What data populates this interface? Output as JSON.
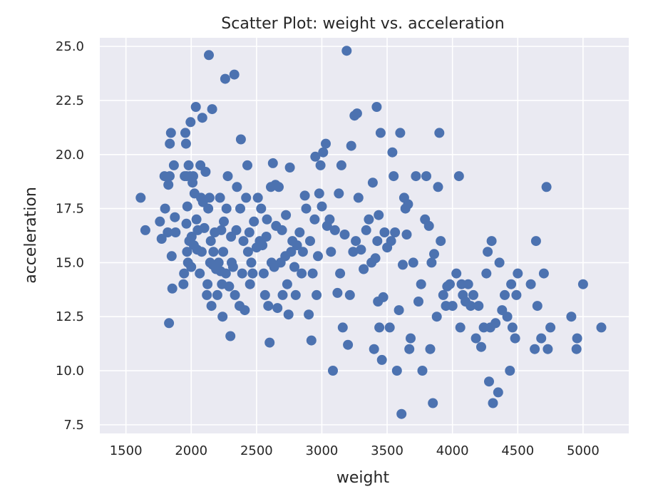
{
  "chart_data": {
    "type": "scatter",
    "title": "Scatter Plot: weight vs. acceleration",
    "xlabel": "weight",
    "ylabel": "acceleration",
    "xlim": [
      1300,
      5350
    ],
    "ylim": [
      7.1,
      25.4
    ],
    "xticks": [
      "1500",
      "2000",
      "2500",
      "3000",
      "3500",
      "4000",
      "4500",
      "5000"
    ],
    "yticks": [
      "7.5",
      "10.0",
      "12.5",
      "15.0",
      "17.5",
      "20.0",
      "22.5",
      "25.0"
    ],
    "grid": true,
    "marker_color": "#4c72b0",
    "background_color": "#eaeaf2",
    "points": [
      [
        1613,
        18.0
      ],
      [
        1649,
        16.5
      ],
      [
        1760,
        16.9
      ],
      [
        1773,
        16.1
      ],
      [
        1795,
        19.0
      ],
      [
        1800,
        17.5
      ],
      [
        1820,
        16.4
      ],
      [
        1825,
        18.6
      ],
      [
        1830,
        12.2
      ],
      [
        1835,
        19.0
      ],
      [
        1836,
        20.5
      ],
      [
        1845,
        21.0
      ],
      [
        1850,
        15.3
      ],
      [
        1855,
        13.8
      ],
      [
        1867,
        19.5
      ],
      [
        1875,
        17.1
      ],
      [
        1880,
        16.4
      ],
      [
        1940,
        14.0
      ],
      [
        1945,
        14.5
      ],
      [
        1950,
        19.0
      ],
      [
        1955,
        21.0
      ],
      [
        1960,
        20.5
      ],
      [
        1963,
        16.8
      ],
      [
        1965,
        19.0
      ],
      [
        1968,
        15.5
      ],
      [
        1970,
        17.6
      ],
      [
        1975,
        15.0
      ],
      [
        1980,
        19.5
      ],
      [
        1985,
        16.0
      ],
      [
        1990,
        19.0
      ],
      [
        1995,
        21.5
      ],
      [
        2000,
        14.8
      ],
      [
        2003,
        16.2
      ],
      [
        2010,
        18.7
      ],
      [
        2015,
        19.0
      ],
      [
        2020,
        15.8
      ],
      [
        2025,
        18.2
      ],
      [
        2035,
        22.2
      ],
      [
        2040,
        17.0
      ],
      [
        2045,
        15.6
      ],
      [
        2050,
        16.5
      ],
      [
        2065,
        14.5
      ],
      [
        2070,
        19.5
      ],
      [
        2075,
        18.0
      ],
      [
        2080,
        15.5
      ],
      [
        2085,
        21.7
      ],
      [
        2090,
        17.8
      ],
      [
        2100,
        16.6
      ],
      [
        2110,
        19.2
      ],
      [
        2120,
        13.5
      ],
      [
        2125,
        14.0
      ],
      [
        2130,
        17.5
      ],
      [
        2135,
        24.6
      ],
      [
        2140,
        18.0
      ],
      [
        2145,
        15.0
      ],
      [
        2150,
        16.0
      ],
      [
        2155,
        13.0
      ],
      [
        2160,
        22.1
      ],
      [
        2164,
        14.9
      ],
      [
        2170,
        15.5
      ],
      [
        2180,
        16.4
      ],
      [
        2190,
        14.7
      ],
      [
        2200,
        13.5
      ],
      [
        2210,
        15.0
      ],
      [
        2220,
        18.0
      ],
      [
        2225,
        14.6
      ],
      [
        2230,
        16.5
      ],
      [
        2235,
        14.0
      ],
      [
        2240,
        12.5
      ],
      [
        2245,
        15.5
      ],
      [
        2250,
        16.9
      ],
      [
        2260,
        23.5
      ],
      [
        2265,
        14.5
      ],
      [
        2270,
        17.5
      ],
      [
        2280,
        19.0
      ],
      [
        2290,
        13.9
      ],
      [
        2300,
        11.6
      ],
      [
        2305,
        16.2
      ],
      [
        2310,
        15.0
      ],
      [
        2320,
        14.8
      ],
      [
        2330,
        23.7
      ],
      [
        2335,
        13.5
      ],
      [
        2345,
        16.5
      ],
      [
        2350,
        18.5
      ],
      [
        2370,
        13.0
      ],
      [
        2375,
        17.5
      ],
      [
        2380,
        20.7
      ],
      [
        2390,
        14.5
      ],
      [
        2400,
        16.0
      ],
      [
        2410,
        12.8
      ],
      [
        2420,
        18.0
      ],
      [
        2430,
        19.5
      ],
      [
        2435,
        15.5
      ],
      [
        2445,
        16.4
      ],
      [
        2450,
        14.0
      ],
      [
        2460,
        15.0
      ],
      [
        2470,
        14.5
      ],
      [
        2480,
        16.9
      ],
      [
        2500,
        15.7
      ],
      [
        2510,
        18.0
      ],
      [
        2525,
        16.0
      ],
      [
        2535,
        17.5
      ],
      [
        2545,
        15.8
      ],
      [
        2555,
        14.5
      ],
      [
        2565,
        13.5
      ],
      [
        2575,
        16.2
      ],
      [
        2580,
        17.0
      ],
      [
        2590,
        13.0
      ],
      [
        2600,
        11.3
      ],
      [
        2610,
        18.5
      ],
      [
        2615,
        15.0
      ],
      [
        2625,
        19.6
      ],
      [
        2635,
        14.8
      ],
      [
        2645,
        18.6
      ],
      [
        2650,
        16.7
      ],
      [
        2660,
        12.9
      ],
      [
        2670,
        18.5
      ],
      [
        2685,
        15.0
      ],
      [
        2695,
        16.5
      ],
      [
        2700,
        13.5
      ],
      [
        2720,
        15.3
      ],
      [
        2725,
        17.2
      ],
      [
        2735,
        14.0
      ],
      [
        2745,
        12.6
      ],
      [
        2755,
        19.4
      ],
      [
        2765,
        15.5
      ],
      [
        2775,
        16.0
      ],
      [
        2790,
        14.8
      ],
      [
        2800,
        13.5
      ],
      [
        2810,
        15.8
      ],
      [
        2830,
        16.4
      ],
      [
        2845,
        14.5
      ],
      [
        2855,
        15.5
      ],
      [
        2870,
        18.1
      ],
      [
        2880,
        17.5
      ],
      [
        2900,
        12.6
      ],
      [
        2910,
        16.0
      ],
      [
        2920,
        11.4
      ],
      [
        2930,
        14.5
      ],
      [
        2945,
        17.0
      ],
      [
        2950,
        19.9
      ],
      [
        2960,
        13.5
      ],
      [
        2970,
        15.3
      ],
      [
        2980,
        18.2
      ],
      [
        2990,
        19.5
      ],
      [
        3000,
        17.6
      ],
      [
        3010,
        20.1
      ],
      [
        3030,
        20.5
      ],
      [
        3040,
        16.7
      ],
      [
        3060,
        17.0
      ],
      [
        3070,
        15.5
      ],
      [
        3085,
        10.0
      ],
      [
        3100,
        16.5
      ],
      [
        3120,
        13.6
      ],
      [
        3130,
        18.2
      ],
      [
        3140,
        14.5
      ],
      [
        3150,
        19.5
      ],
      [
        3160,
        12.0
      ],
      [
        3175,
        16.3
      ],
      [
        3190,
        24.8
      ],
      [
        3200,
        11.2
      ],
      [
        3215,
        13.5
      ],
      [
        3225,
        20.4
      ],
      [
        3240,
        15.5
      ],
      [
        3250,
        21.8
      ],
      [
        3260,
        16.0
      ],
      [
        3270,
        21.9
      ],
      [
        3280,
        18.0
      ],
      [
        3300,
        15.6
      ],
      [
        3320,
        14.7
      ],
      [
        3340,
        16.5
      ],
      [
        3360,
        17.0
      ],
      [
        3380,
        15.0
      ],
      [
        3390,
        18.7
      ],
      [
        3400,
        11.0
      ],
      [
        3410,
        15.2
      ],
      [
        3420,
        22.2
      ],
      [
        3425,
        16.0
      ],
      [
        3430,
        13.2
      ],
      [
        3435,
        17.2
      ],
      [
        3440,
        12.0
      ],
      [
        3450,
        21.0
      ],
      [
        3460,
        10.5
      ],
      [
        3470,
        13.4
      ],
      [
        3480,
        16.4
      ],
      [
        3500,
        15.7
      ],
      [
        3520,
        12.0
      ],
      [
        3530,
        16.0
      ],
      [
        3540,
        20.1
      ],
      [
        3550,
        19.0
      ],
      [
        3560,
        16.4
      ],
      [
        3575,
        10.0
      ],
      [
        3590,
        12.8
      ],
      [
        3600,
        21.0
      ],
      [
        3610,
        8.0
      ],
      [
        3620,
        14.9
      ],
      [
        3630,
        18.0
      ],
      [
        3640,
        17.5
      ],
      [
        3650,
        16.3
      ],
      [
        3660,
        17.7
      ],
      [
        3670,
        11.0
      ],
      [
        3680,
        11.5
      ],
      [
        3700,
        15.0
      ],
      [
        3720,
        19.0
      ],
      [
        3740,
        13.2
      ],
      [
        3760,
        14.0
      ],
      [
        3770,
        10.0
      ],
      [
        3790,
        17.0
      ],
      [
        3800,
        19.0
      ],
      [
        3820,
        16.7
      ],
      [
        3830,
        11.0
      ],
      [
        3840,
        15.0
      ],
      [
        3850,
        8.5
      ],
      [
        3860,
        15.4
      ],
      [
        3880,
        12.5
      ],
      [
        3890,
        18.5
      ],
      [
        3900,
        21.0
      ],
      [
        3910,
        16.0
      ],
      [
        3930,
        13.5
      ],
      [
        3950,
        13.0
      ],
      [
        3960,
        13.9
      ],
      [
        3980,
        14.0
      ],
      [
        4000,
        13.0
      ],
      [
        4030,
        14.5
      ],
      [
        4050,
        19.0
      ],
      [
        4060,
        12.0
      ],
      [
        4070,
        14.0
      ],
      [
        4080,
        13.5
      ],
      [
        4100,
        13.2
      ],
      [
        4120,
        14.0
      ],
      [
        4140,
        13.0
      ],
      [
        4160,
        13.5
      ],
      [
        4180,
        11.5
      ],
      [
        4200,
        13.0
      ],
      [
        4220,
        11.1
      ],
      [
        4240,
        12.0
      ],
      [
        4260,
        14.5
      ],
      [
        4270,
        15.5
      ],
      [
        4280,
        9.5
      ],
      [
        4290,
        12.0
      ],
      [
        4300,
        16.0
      ],
      [
        4310,
        8.5
      ],
      [
        4330,
        12.2
      ],
      [
        4350,
        9.0
      ],
      [
        4360,
        15.0
      ],
      [
        4380,
        12.8
      ],
      [
        4400,
        13.5
      ],
      [
        4420,
        12.5
      ],
      [
        4440,
        10.0
      ],
      [
        4450,
        14.0
      ],
      [
        4460,
        12.0
      ],
      [
        4480,
        11.5
      ],
      [
        4490,
        13.5
      ],
      [
        4500,
        14.5
      ],
      [
        4600,
        14.0
      ],
      [
        4630,
        11.0
      ],
      [
        4640,
        16.0
      ],
      [
        4650,
        13.0
      ],
      [
        4680,
        11.5
      ],
      [
        4700,
        14.5
      ],
      [
        4720,
        18.5
      ],
      [
        4730,
        11.0
      ],
      [
        4750,
        12.0
      ],
      [
        4910,
        12.5
      ],
      [
        4950,
        11.0
      ],
      [
        4955,
        11.5
      ],
      [
        5000,
        14.0
      ],
      [
        5140,
        12.0
      ]
    ]
  }
}
